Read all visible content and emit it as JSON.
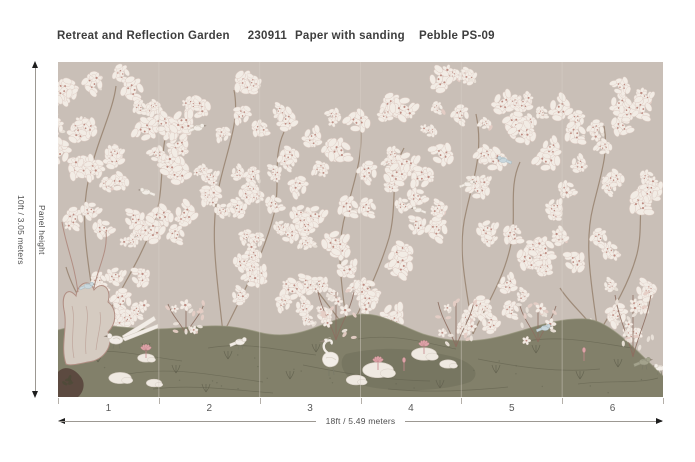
{
  "header": {
    "product_name": "Retreat and Reflection Garden",
    "product_code": "230911",
    "material": "Paper with sanding",
    "colorway": "Pebble PS-09"
  },
  "left_dimension": {
    "label": "Panel height",
    "value": "10ft / 3.05 meters"
  },
  "bottom_dimension": {
    "value": "18ft / 5.49 meters"
  },
  "panels": {
    "numbers": [
      "1",
      "2",
      "3",
      "4",
      "5",
      "6"
    ]
  },
  "art": {
    "background": "#c9bfb7",
    "blossom": "#f2ece5",
    "blossom_edge": "#dcc8c0",
    "blossom_center": "#bd8b81",
    "branch": "#97816f",
    "leaf_pink": "#e5cdc5",
    "leaf_white": "#eae2d9",
    "ground": "#82806a",
    "ground_dark": "#605f4d",
    "ground_light": "#97957e",
    "bird_blue": "#c9d7dd",
    "bird_white": "#f2ede7",
    "trunk": "#d5cbc1",
    "trunk_line": "#b18e83",
    "rock": "#efe9e1",
    "rock_edge": "#d6cdc3",
    "lotus": "#dda3a8",
    "lotus_edge": "#c4858b",
    "bush": "#5c4a40",
    "shrub_stem": "#8d6e60",
    "seam": "#d8d0c8"
  }
}
